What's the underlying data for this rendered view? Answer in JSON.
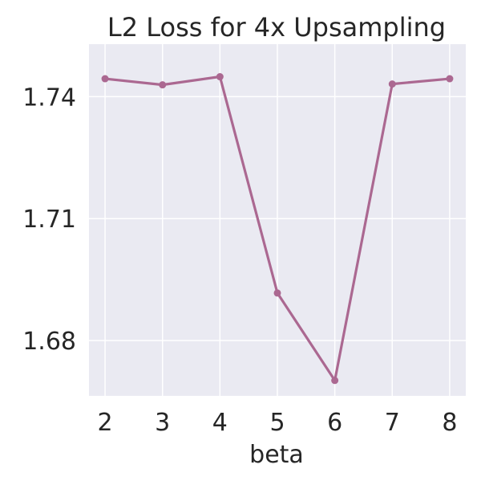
{
  "chart_data": {
    "type": "line",
    "title": "L2 Loss for 4x Upsampling",
    "xlabel": "beta",
    "ylabel": "",
    "x": [
      2,
      3,
      4,
      5,
      6,
      7,
      8
    ],
    "series": [
      {
        "values": [
          1.7444,
          1.7429,
          1.7449,
          1.6917,
          1.6702,
          1.7431,
          1.7444
        ],
        "color": "#ab6891"
      }
    ],
    "x_ticks": [
      "2",
      "3",
      "4",
      "5",
      "6",
      "7",
      "8"
    ],
    "y_ticks": [
      "1.68",
      "1.71",
      "1.74"
    ],
    "y_tick_values": [
      1.68,
      1.71,
      1.74
    ],
    "xlim": [
      1.72,
      8.28
    ],
    "ylim": [
      1.6664,
      1.7529
    ],
    "grid": true,
    "colors": {
      "plot_background": "#eaeaf2",
      "grid": "#ffffff",
      "text": "#262626"
    }
  }
}
